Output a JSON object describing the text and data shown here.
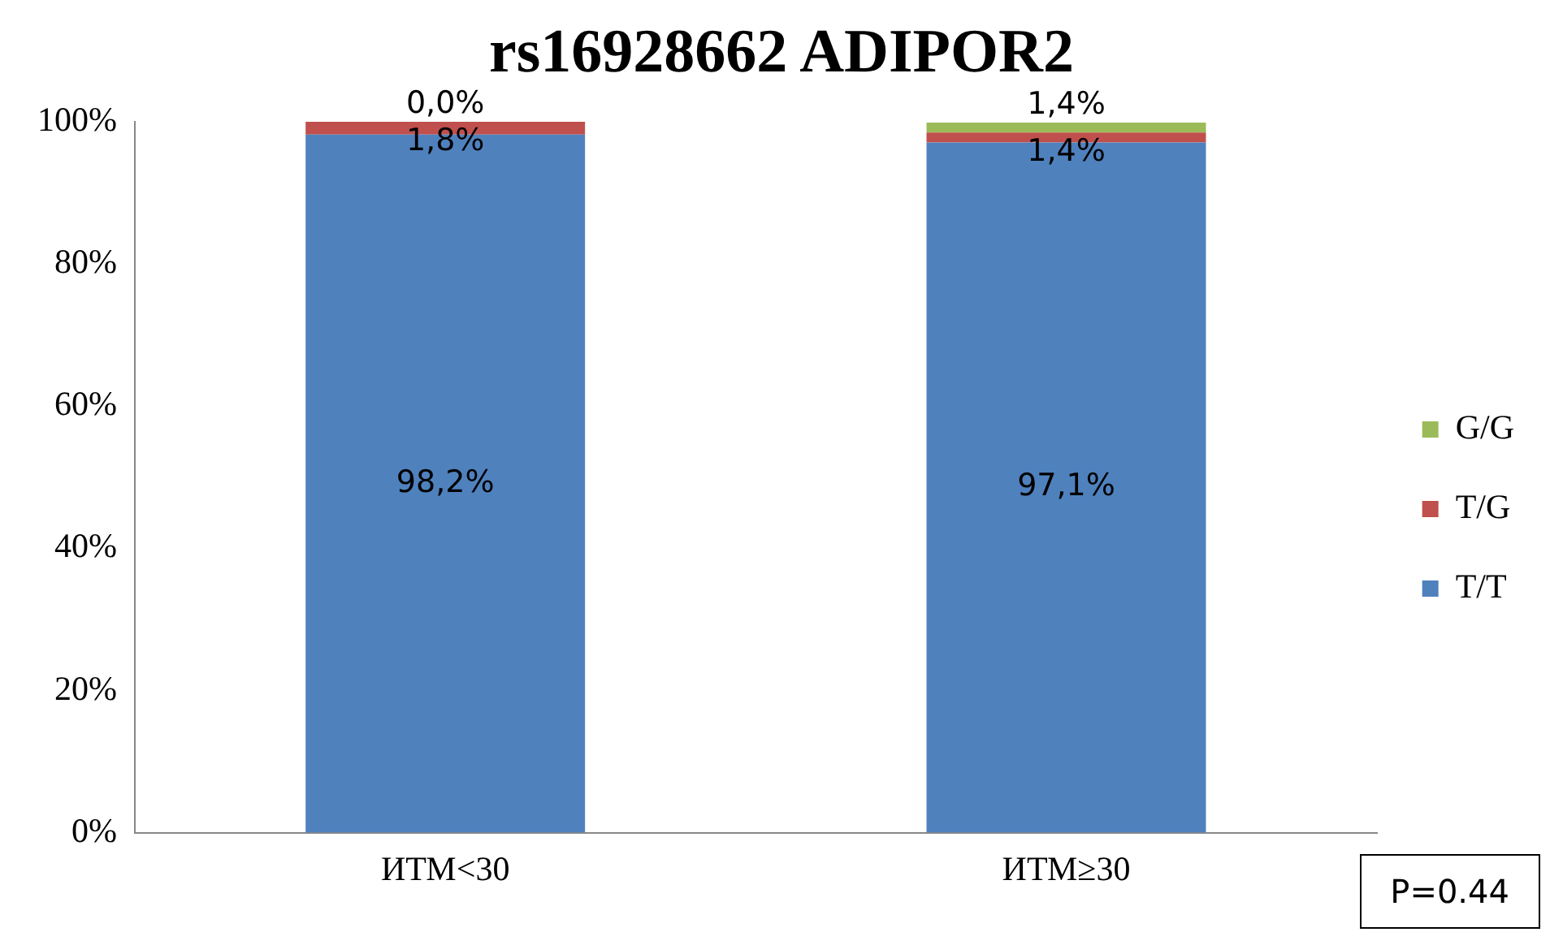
{
  "chart_data": {
    "type": "bar",
    "title": "rs16928662 ADIPOR2",
    "categories": [
      "ИТМ<30",
      "ИТМ≥30"
    ],
    "stacked": true,
    "series": [
      {
        "name": "T/T",
        "color": "#4f81bd",
        "values": [
          98.2,
          97.1
        ],
        "value_labels": [
          "98,2%",
          "97,1%"
        ]
      },
      {
        "name": "T/G",
        "color": "#c0504d",
        "values": [
          1.8,
          1.4
        ],
        "value_labels": [
          "1,8%",
          "1,4%"
        ]
      },
      {
        "name": "G/G",
        "color": "#9bbb59",
        "values": [
          0.0,
          1.4
        ],
        "value_labels": [
          "0,0%",
          "1,4%"
        ]
      }
    ],
    "ylim": [
      0,
      100
    ],
    "yticks": [
      {
        "value": 0,
        "label": "0%"
      },
      {
        "value": 20,
        "label": "20%"
      },
      {
        "value": 40,
        "label": "40%"
      },
      {
        "value": 60,
        "label": "60%"
      },
      {
        "value": 80,
        "label": "80%"
      },
      {
        "value": 100,
        "label": "100%"
      }
    ],
    "grid": false,
    "legend": "right",
    "annotations": [
      "P=0.44"
    ]
  }
}
